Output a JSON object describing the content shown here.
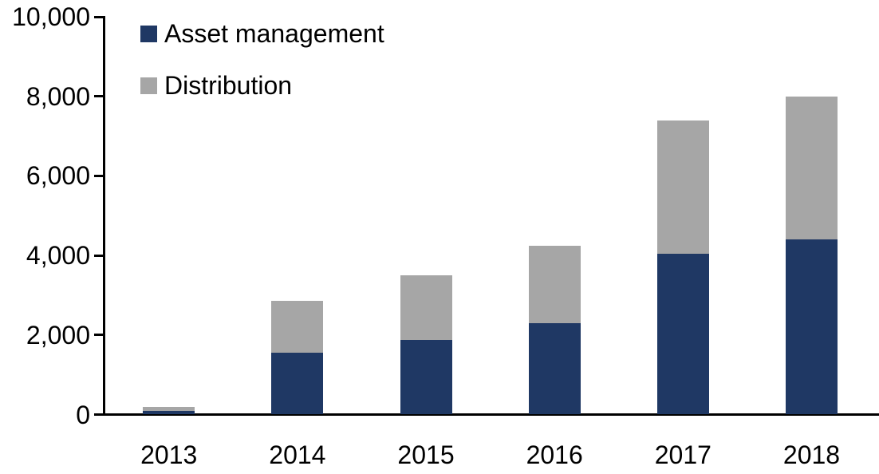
{
  "chart_data": {
    "type": "bar",
    "variant": "stacked-column",
    "title": "",
    "xlabel": "",
    "ylabel": "",
    "categories": [
      "2013",
      "2014",
      "2015",
      "2016",
      "2017",
      "2018"
    ],
    "series": [
      {
        "name": "Asset management",
        "color": "#1f3864",
        "values": [
          90,
          1550,
          1880,
          2300,
          4040,
          4400
        ]
      },
      {
        "name": "Distribution",
        "color": "#a6a6a6",
        "values": [
          95,
          1300,
          1620,
          1950,
          3350,
          3600
        ]
      }
    ],
    "ylim": [
      0,
      10000
    ],
    "yticks": [
      0,
      2000,
      4000,
      6000,
      8000,
      10000
    ],
    "ytick_labels": [
      "0",
      "2,000",
      "4,000",
      "6,000",
      "8,000",
      "10,000"
    ],
    "grid": false,
    "legend_position": "inside-top-left",
    "axis_color": "#000000",
    "text_color": "#000000",
    "background_color": "#ffffff"
  }
}
